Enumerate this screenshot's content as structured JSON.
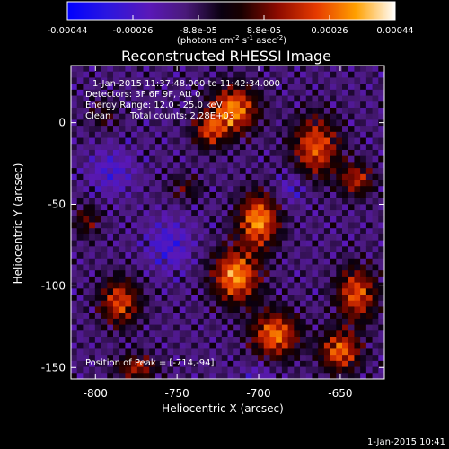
{
  "chart_data": {
    "type": "heatmap",
    "title": "Reconstructed RHESSI Image",
    "xlabel": "Heliocentric X (arcsec)",
    "ylabel": "Heliocentric Y (arcsec)",
    "xlim": [
      -815,
      -623
    ],
    "ylim": [
      -157,
      35
    ],
    "xticks": [
      -800,
      -750,
      -700,
      -650
    ],
    "yticks": [
      -150,
      -100,
      -50,
      0
    ],
    "colorbar": {
      "ticks": [
        "-0.00044",
        "-0.00026",
        "-8.8e-05",
        "8.8e-05",
        "0.00026",
        "0.00044"
      ],
      "range": [
        -0.00044,
        0.00044
      ],
      "units_text": "(photons cm",
      "units_exp1": "-2",
      "units_mid": " s",
      "units_exp2": "-1",
      "units_end": " asec",
      "units_exp3": "-2",
      "units_close": ")"
    },
    "annotations": {
      "time_range": "1-Jan-2015 11:37:48.000 to 11:42:34.000",
      "detectors": "Detectors: 3F 6F 9F, Att 0",
      "energy": "Energy Range: 12.0 - 25.0 keV",
      "clean": "Clean",
      "total_counts": "Total counts: 2.28E+03",
      "peak": "Position of Peak = [-714,-94]"
    },
    "peak": {
      "x": -714,
      "y": -94
    },
    "timestamp": "1-Jan-2015 10:41",
    "blobs": [
      {
        "x": -715,
        "y": 8,
        "amp": 0.00042,
        "sx": 14,
        "sy": 14
      },
      {
        "x": -730,
        "y": -5,
        "amp": 0.0003,
        "sx": 10,
        "sy": 10
      },
      {
        "x": -665,
        "y": -15,
        "amp": 0.00036,
        "sx": 14,
        "sy": 18
      },
      {
        "x": -640,
        "y": -35,
        "amp": 0.00028,
        "sx": 10,
        "sy": 10
      },
      {
        "x": -700,
        "y": -60,
        "amp": 0.00044,
        "sx": 12,
        "sy": 16
      },
      {
        "x": -714,
        "y": -94,
        "amp": 0.00044,
        "sx": 14,
        "sy": 16
      },
      {
        "x": -690,
        "y": -130,
        "amp": 0.0004,
        "sx": 14,
        "sy": 14
      },
      {
        "x": -640,
        "y": -105,
        "amp": 0.00036,
        "sx": 12,
        "sy": 16
      },
      {
        "x": -650,
        "y": -140,
        "amp": 0.00038,
        "sx": 12,
        "sy": 12
      },
      {
        "x": -785,
        "y": -110,
        "amp": 0.00034,
        "sx": 12,
        "sy": 14
      },
      {
        "x": -775,
        "y": -150,
        "amp": 0.00026,
        "sx": 12,
        "sy": 8
      },
      {
        "x": -805,
        "y": -60,
        "amp": 0.00018,
        "sx": 8,
        "sy": 10
      },
      {
        "x": -795,
        "y": 5,
        "amp": 0.00012,
        "sx": 10,
        "sy": 10
      },
      {
        "x": -745,
        "y": -40,
        "amp": 0.00014,
        "sx": 10,
        "sy": 8
      },
      {
        "x": -755,
        "y": -75,
        "amp": -0.00016,
        "sx": 14,
        "sy": 16
      },
      {
        "x": -790,
        "y": -30,
        "amp": -0.00014,
        "sx": 14,
        "sy": 14
      },
      {
        "x": -680,
        "y": -40,
        "amp": -0.00012,
        "sx": 10,
        "sy": 10
      },
      {
        "x": -700,
        "y": -155,
        "amp": -0.0001,
        "sx": 10,
        "sy": 8
      }
    ]
  }
}
